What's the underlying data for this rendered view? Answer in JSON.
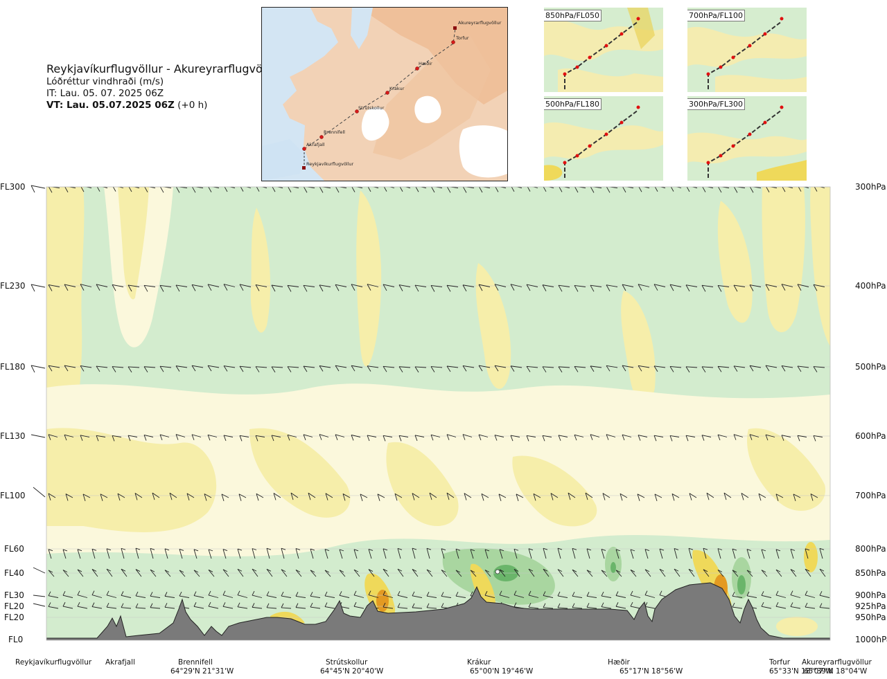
{
  "header": {
    "title": "Reykjavíkurflugvöllur - Akureyrarflugvöllur",
    "subtitle": "Lóðréttur vindhraði (m/s)",
    "it": "IT: Lau. 05. 07. 2025 06Z",
    "vt_bold": "VT: Lau. 05.07.2025 06Z",
    "vt_suffix": " (+0 h)"
  },
  "map": {
    "points": [
      "Akureyrarflugvöllur",
      "Torfur",
      "Hæðir",
      "Krákur",
      "Strútskollur",
      "Brennifell",
      "Akrafjall",
      "Reykjavíkurflugvöllur"
    ]
  },
  "panels": [
    {
      "label": "850hPa/FL050"
    },
    {
      "label": "700hPa/FL100"
    },
    {
      "label": "500hPa/FL180"
    },
    {
      "label": "300hPa/FL300"
    }
  ],
  "axis_left": [
    "FL300",
    "FL230",
    "FL180",
    "FL130",
    "FL100",
    "FL60",
    "FL40",
    "FL30",
    "FL20",
    "FL20",
    "FL0"
  ],
  "axis_right": [
    "300hPa",
    "400hPa",
    "500hPa",
    "600hPa",
    "700hPa",
    "800hPa",
    "850hPa",
    "900hPa",
    "925hPa",
    "950hPa",
    "1000hPa"
  ],
  "locations": [
    {
      "name": "Reykjavíkurflugvöllur",
      "coord": ""
    },
    {
      "name": "Akrafjall",
      "coord": ""
    },
    {
      "name": "Brennifell",
      "coord": "64°29'N 21°31'W"
    },
    {
      "name": "Strútskollur",
      "coord": "64°45'N 20°40'W"
    },
    {
      "name": "Krákur",
      "coord": "65°00'N 19°46'W"
    },
    {
      "name": "Hæðir",
      "coord": "65°17'N 18°56'W"
    },
    {
      "name": "Torfur",
      "coord": "65°33'N 18°07'W"
    },
    {
      "name": "Akureyrarflugvöllur",
      "coord": "65°39'N 18°04'W"
    }
  ],
  "colors": {
    "green_light": "#d3ecce",
    "green_mid": "#a9d6a0",
    "green_dark": "#6ab56a",
    "yellow_light": "#f6eeaa",
    "yellow_mid": "#efd95a",
    "orange": "#e39a22",
    "terrain": "#7a7a7a",
    "sea": "#cfe3f3",
    "land": "#f4c9a6"
  },
  "chart_data": {
    "type": "heatmap",
    "title": "Reykjavíkurflugvöllur - Akureyrarflugvöllur",
    "subtitle": "Lóðréttur vindhraði (m/s)",
    "x": [
      "Reykjavíkurflugvöllur",
      "Akrafjall",
      "Brennifell",
      "Strútskollur",
      "Krákur",
      "Hæðir",
      "Torfur",
      "Akureyrarflugvöllur"
    ],
    "y_levels_hpa": [
      1000,
      950,
      925,
      900,
      850,
      800,
      700,
      600,
      500,
      400,
      300
    ],
    "y_levels_fl": [
      "FL0",
      "FL20",
      "FL20",
      "FL30",
      "FL40",
      "FL60",
      "FL100",
      "FL130",
      "FL180",
      "FL230",
      "FL300"
    ],
    "grid": false
  }
}
